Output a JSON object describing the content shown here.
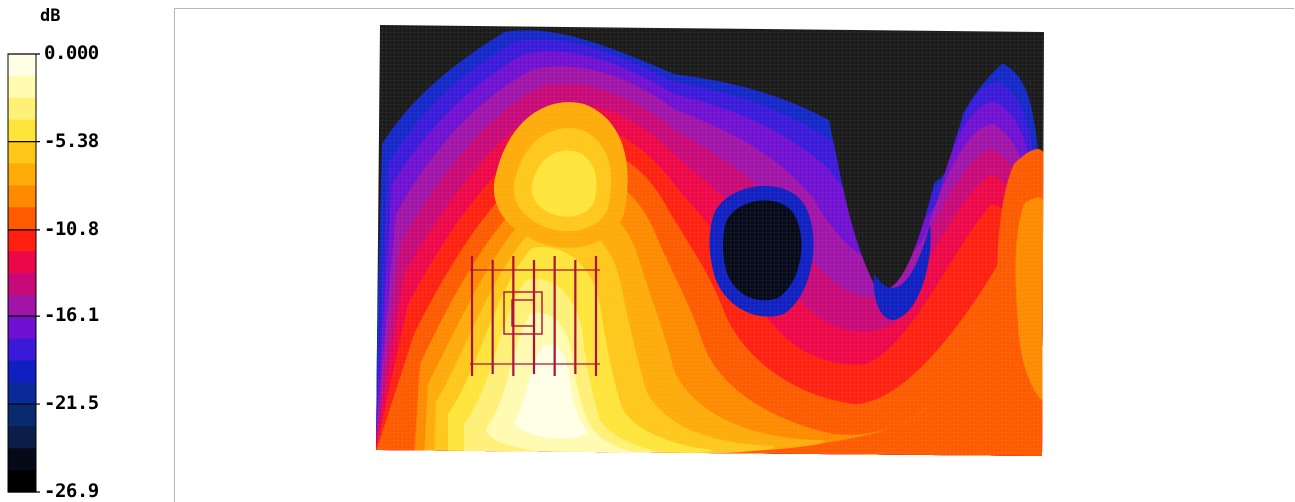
{
  "chart_data": {
    "type": "heatmap",
    "title": "",
    "colorbar": {
      "unit": "dB",
      "range": [
        -26.9,
        0.0
      ],
      "tick_labels": [
        "0.000",
        "-5.38",
        "-10.8",
        "-16.1",
        "-21.5",
        "-26.9"
      ],
      "tick_values": [
        0.0,
        -5.38,
        -10.8,
        -16.1,
        -21.5,
        -26.9
      ],
      "bands": [
        "#ffffe6",
        "#fffbb0",
        "#fff078",
        "#ffe43a",
        "#ffc71a",
        "#ffab0a",
        "#ff8a00",
        "#ff5a00",
        "#ff2010",
        "#ec0848",
        "#c80a78",
        "#a014a8",
        "#7010d0",
        "#3a1ad8",
        "#1020c0",
        "#0a2a9a",
        "#0a2a6e",
        "#0a1e48",
        "#050a18",
        "#000000"
      ]
    },
    "field": {
      "background": "#1a1a1a",
      "peak_region": "lower-left",
      "hotspots": [
        {
          "name": "main-peak",
          "level_db": 0.0
        },
        {
          "name": "right-edge-lobe",
          "level_db": -10.8
        },
        {
          "name": "center-null",
          "level_db": -26.9
        }
      ]
    },
    "overlay": {
      "type": "antenna-array",
      "elements": 7,
      "color": "#b0103c"
    }
  }
}
